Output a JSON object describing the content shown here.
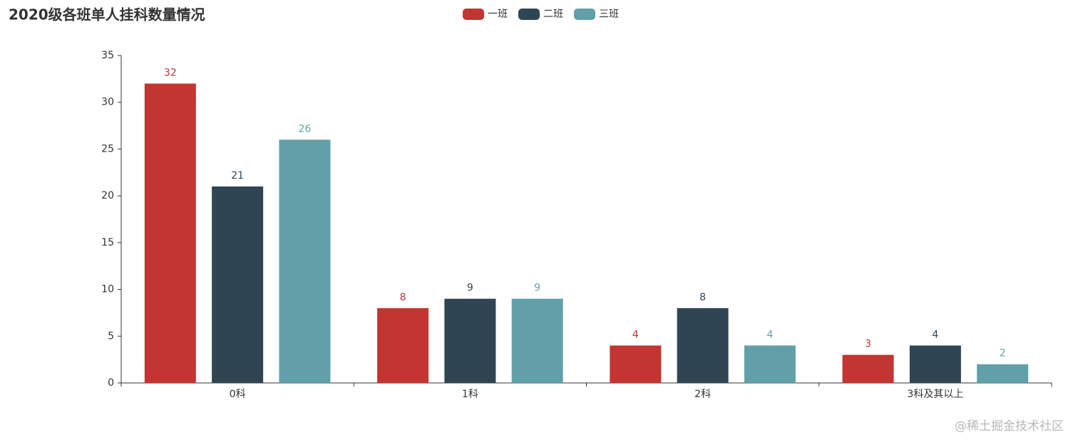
{
  "chart_data": {
    "type": "bar",
    "title": "2020级各班单人挂科数量情况",
    "categories": [
      "0科",
      "1科",
      "2科",
      "3科及其以上"
    ],
    "series": [
      {
        "name": "一班",
        "color": "#c23531",
        "values": [
          32,
          8,
          4,
          3
        ]
      },
      {
        "name": "二班",
        "color": "#2f4554",
        "values": [
          21,
          9,
          8,
          4
        ]
      },
      {
        "name": "三班",
        "color": "#61a0a8",
        "values": [
          26,
          9,
          4,
          2
        ]
      }
    ],
    "ylim": [
      0,
      35
    ],
    "yticks": [
      0,
      5,
      10,
      15,
      20,
      25,
      30,
      35
    ],
    "grid": false,
    "legend": "top",
    "watermark": "@稀土掘金技术社区"
  }
}
